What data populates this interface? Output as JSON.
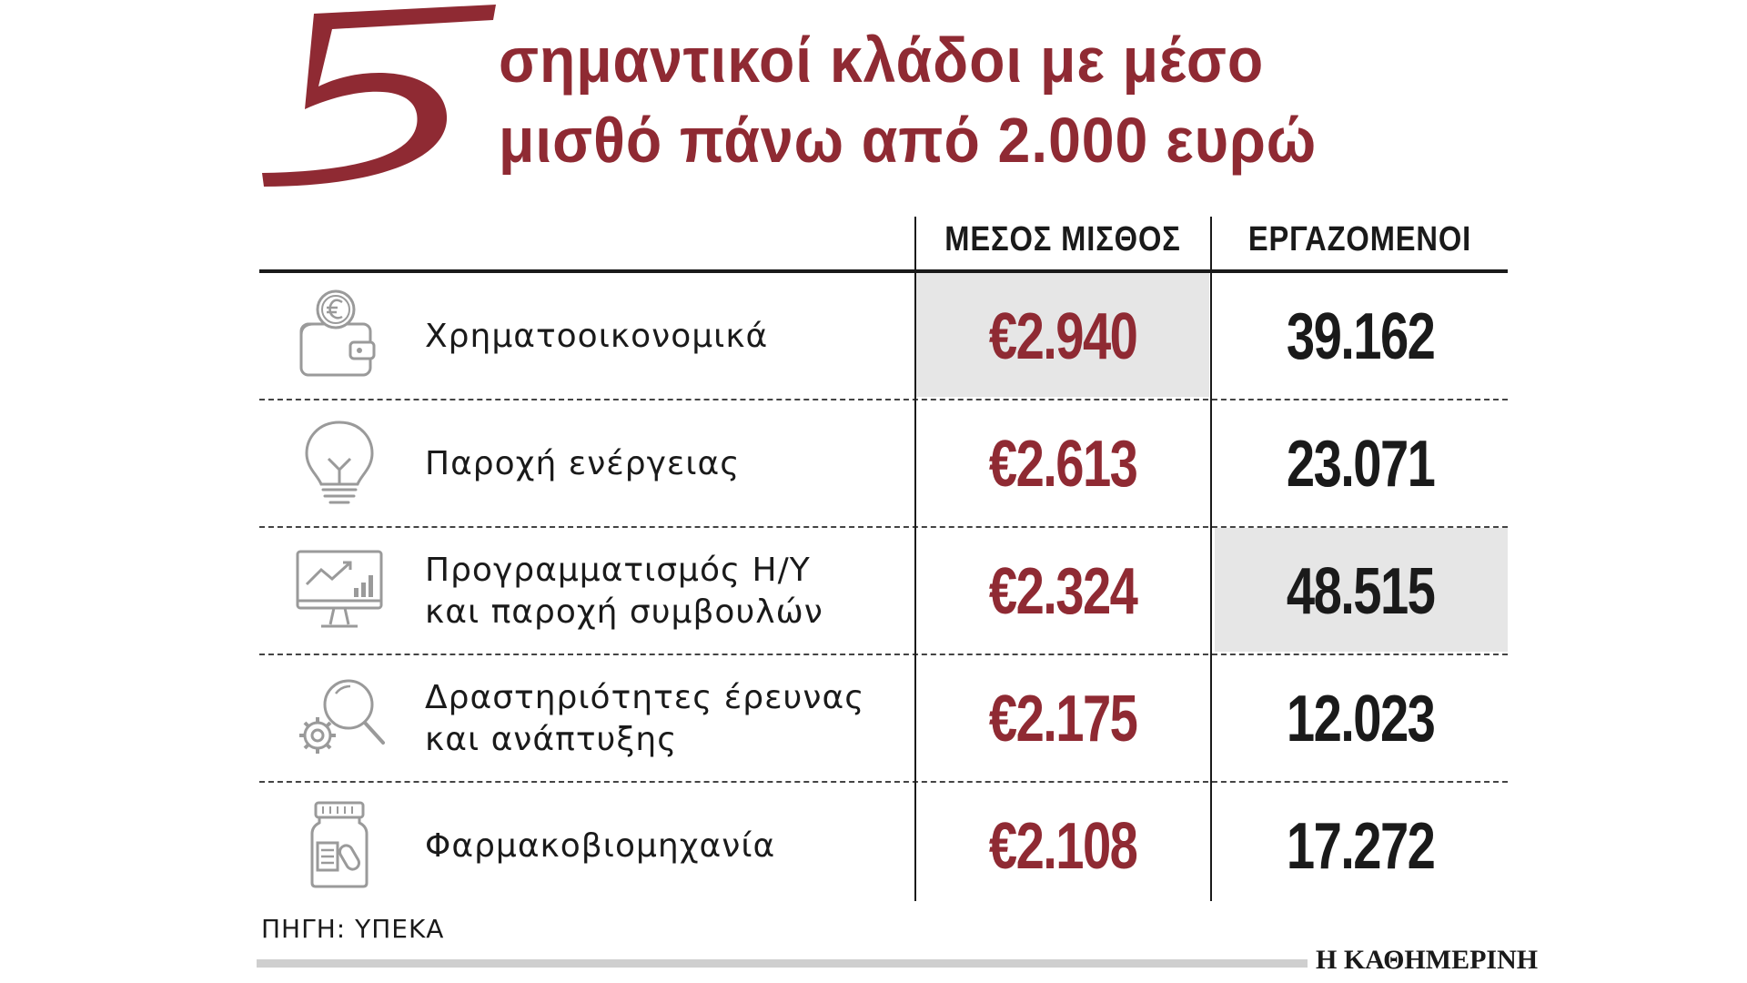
{
  "header": {
    "big_number": "5",
    "title_line1": "σημαντικοί κλάδοι με μέσο",
    "title_line2": "μισθό πάνω από 2.000 ευρώ"
  },
  "chart_data": {
    "type": "table",
    "columns": [
      "",
      "ΜΕΣΟΣ ΜΙΣΘΟΣ",
      "ΕΡΓΑΖΟΜΕΝΟΙ"
    ],
    "rows": [
      {
        "icon": "wallet-euro-icon",
        "sector": "Χρηματοοικονομικά",
        "salary": "€2.940",
        "workers": "39.162",
        "salary_value": 2940,
        "workers_value": 39162,
        "highlight": "salary"
      },
      {
        "icon": "lightbulb-icon",
        "sector": "Παροχή ενέργειας",
        "salary": "€2.613",
        "workers": "23.071",
        "salary_value": 2613,
        "workers_value": 23071,
        "highlight": ""
      },
      {
        "icon": "monitor-chart-icon",
        "sector": "Προγραμματισμός Η/Υ\nκαι παροχή συμβουλών",
        "salary": "€2.324",
        "workers": "48.515",
        "salary_value": 2324,
        "workers_value": 48515,
        "highlight": "workers"
      },
      {
        "icon": "magnifier-gear-icon",
        "sector": "Δραστηριότητες έρευνας\nκαι ανάπτυξης",
        "salary": "€2.175",
        "workers": "12.023",
        "salary_value": 2175,
        "workers_value": 12023,
        "highlight": ""
      },
      {
        "icon": "pill-bottle-icon",
        "sector": "Φαρμακοβιομηχανία",
        "salary": "€2.108",
        "workers": "17.272",
        "salary_value": 2108,
        "workers_value": 17272,
        "highlight": ""
      }
    ]
  },
  "footer": {
    "source": "ΠΗΓΗ: ΥΠΕΚΑ",
    "brand": "Η ΚΑΘΗΜΕΡΙΝΗ"
  },
  "colors": {
    "accent": "#8f2a33",
    "text": "#1a1a1a",
    "highlight": "#e6e6e6",
    "icon": "#9a9a9a"
  }
}
